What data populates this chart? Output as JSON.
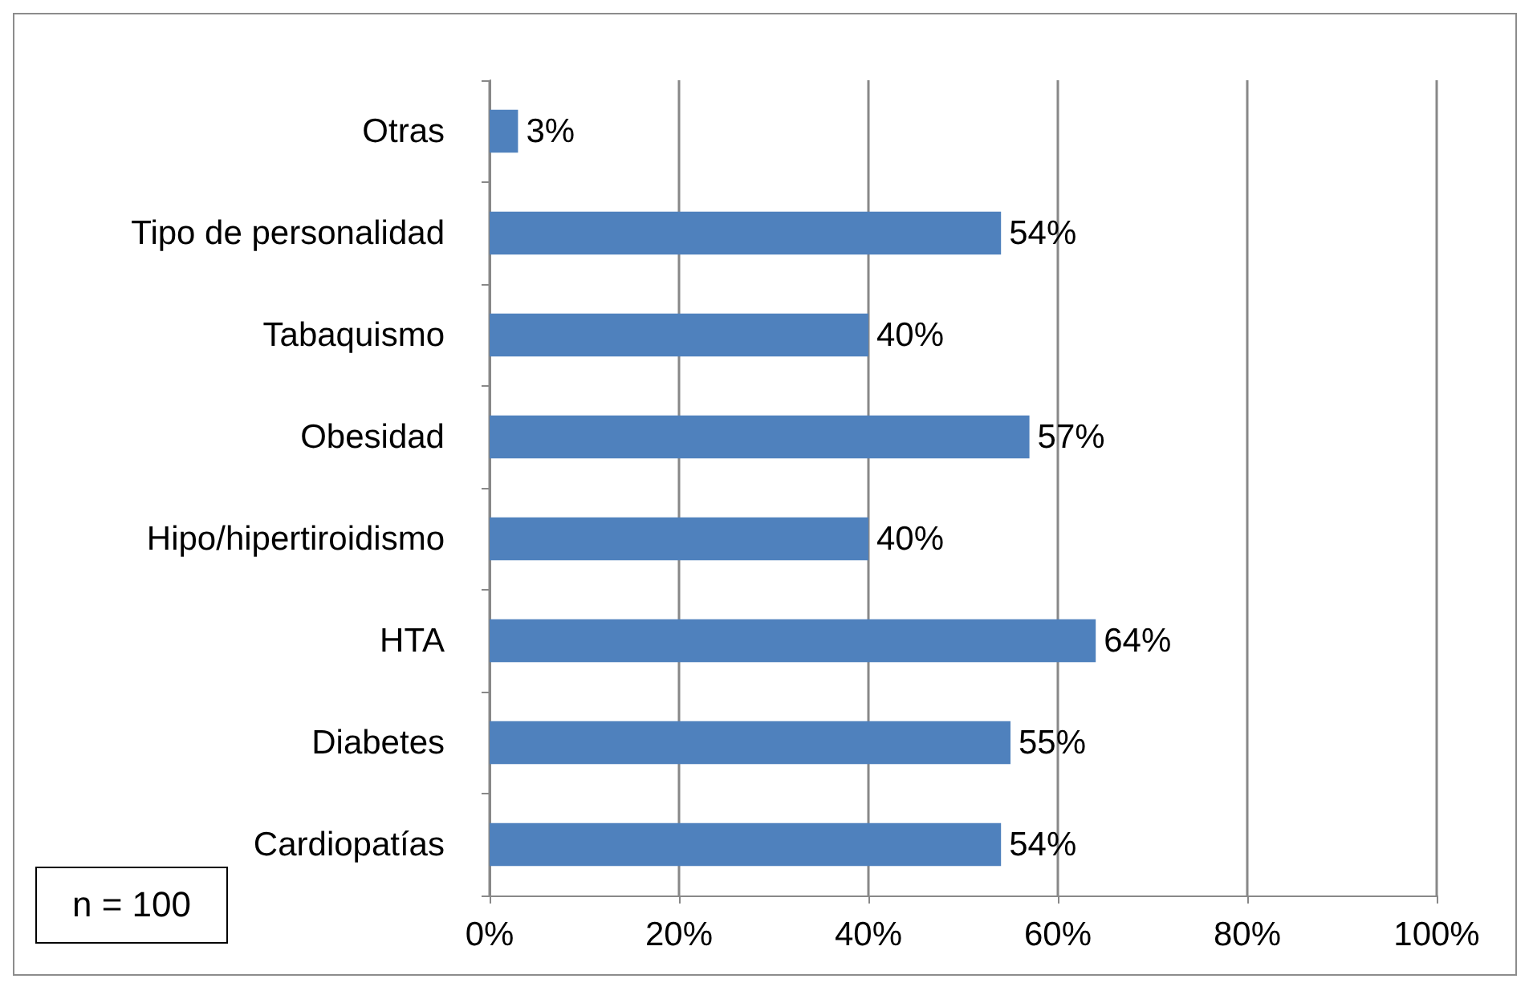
{
  "chart_data": {
    "type": "bar",
    "orientation": "horizontal",
    "categories": [
      "Otras",
      "Tipo de personalidad",
      "Tabaquismo",
      "Obesidad",
      "Hipo/hipertiroidismo",
      "HTA",
      "Diabetes",
      "Cardiopatías"
    ],
    "values": [
      3,
      54,
      40,
      57,
      40,
      64,
      55,
      54
    ],
    "value_labels": [
      "3%",
      "54%",
      "40%",
      "57%",
      "40%",
      "64%",
      "55%",
      "54%"
    ],
    "color": "#4f81bd",
    "xlim": [
      0,
      100
    ],
    "xticks": [
      {
        "value": 0,
        "label": "0%"
      },
      {
        "value": 20,
        "label": "20%"
      },
      {
        "value": 40,
        "label": "40%"
      },
      {
        "value": 60,
        "label": "60%"
      },
      {
        "value": 80,
        "label": "80%"
      },
      {
        "value": 100,
        "label": "100%"
      }
    ],
    "grid": "x",
    "annotations": [
      "n = 100"
    ]
  }
}
